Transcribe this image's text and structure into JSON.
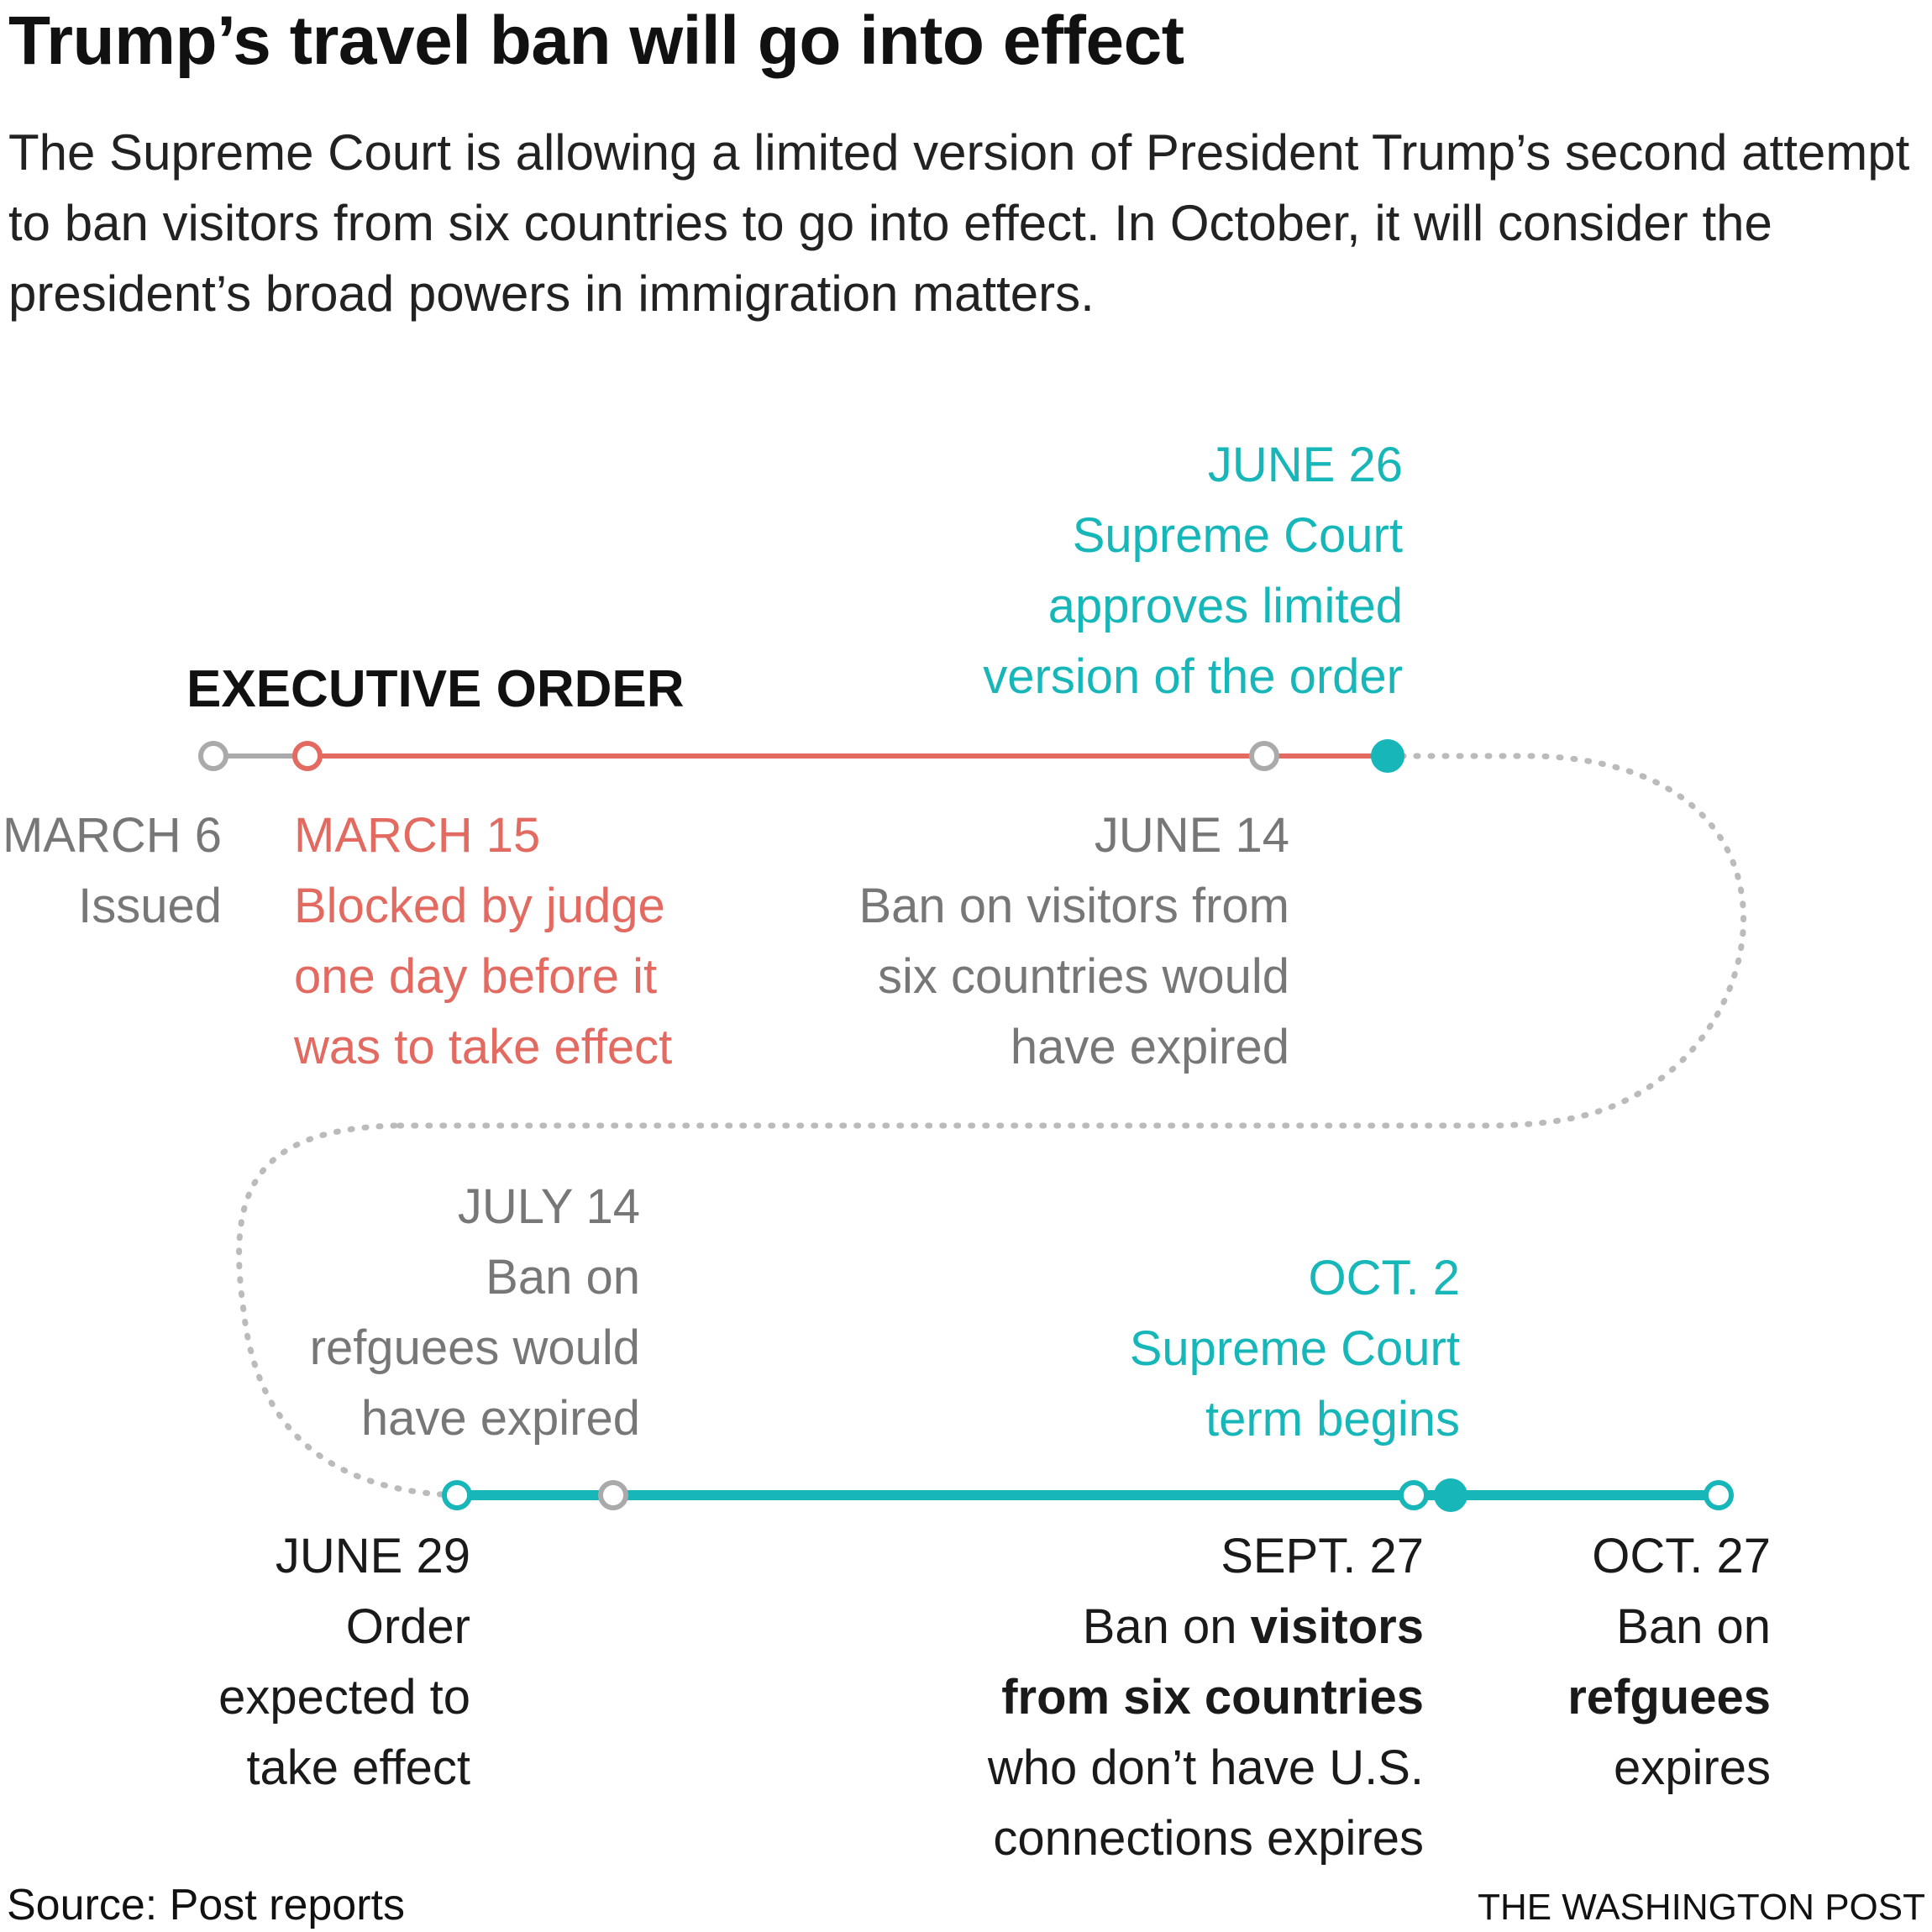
{
  "header": {
    "title": "Trump’s travel ban will go into effect",
    "subtitle": "The Supreme Court is allowing a limited version of President Trump’s second attempt to ban visitors from six countries to go into effect. In October, it will consider the president’s broad powers in immigration matters."
  },
  "section_label": "EXECUTIVE ORDER",
  "colors": {
    "issued_gray": "#aaaaaa",
    "blocked_red": "#e26a60",
    "supreme_court_teal": "#16b6b9",
    "dotted_connector": "#bbbbbb",
    "text_gray": "#777777"
  },
  "events": {
    "march6": {
      "date": "MARCH 6",
      "lines": [
        "Issued"
      ]
    },
    "march15": {
      "date": "MARCH 15",
      "lines": [
        "Blocked by judge",
        "one day before it",
        "was to take effect"
      ]
    },
    "june14": {
      "date": "JUNE 14",
      "lines": [
        "Ban on visitors from",
        "six countries would",
        "have expired"
      ]
    },
    "june26": {
      "date": "JUNE 26",
      "lines": [
        "Supreme Court",
        "approves limited",
        "version of the order"
      ]
    },
    "june29": {
      "date": "JUNE 29",
      "lines": [
        "Order",
        "expected to",
        "take effect"
      ]
    },
    "july14": {
      "date": "JULY 14",
      "lines": [
        "Ban on",
        "refguees would",
        "have expired"
      ]
    },
    "sept27": {
      "date": "SEPT. 27",
      "line1_plain": "Ban on ",
      "line1_bold": "visitors",
      "line2_bold": "from six countries",
      "line3": "who don’t have U.S.",
      "line4": "connections expires"
    },
    "oct2": {
      "date": "OCT. 2",
      "lines": [
        "Supreme Court",
        "term begins"
      ]
    },
    "oct27": {
      "date": "OCT. 27",
      "line1": "Ban on",
      "line2_bold": "refguees",
      "line3": "expires"
    }
  },
  "footer": {
    "source": "Source: Post reports",
    "credit": "THE WASHINGTON POST"
  }
}
